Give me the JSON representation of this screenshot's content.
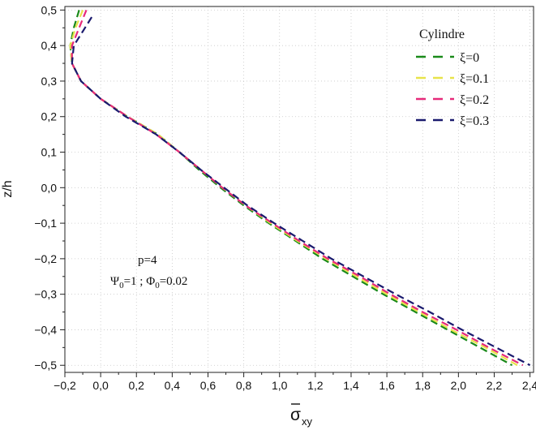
{
  "chart_data": {
    "type": "line",
    "title": "",
    "xlabel": "σxy",
    "xlabel_main": "σ",
    "xlabel_sub": "xy",
    "ylabel": "z/h",
    "xlim": [
      -0.2,
      2.42
    ],
    "ylim": [
      -0.52,
      0.51
    ],
    "x_ticks": [
      -0.2,
      0.0,
      0.2,
      0.4,
      0.6,
      0.8,
      1.0,
      1.2,
      1.4,
      1.6,
      1.8,
      2.0,
      2.2,
      2.4
    ],
    "x_tick_labels": [
      "−0,2",
      "0,0",
      "0,2",
      "0,4",
      "0,6",
      "0,8",
      "1,0",
      "1,2",
      "1,4",
      "1,6",
      "1,8",
      "2,0",
      "2,2",
      "2,4"
    ],
    "y_ticks": [
      -0.5,
      -0.4,
      -0.3,
      -0.2,
      -0.1,
      0.0,
      0.1,
      0.2,
      0.3,
      0.4,
      0.5
    ],
    "y_tick_labels": [
      "−0,5",
      "−0,4",
      "−0,3",
      "−0,2",
      "−0,1",
      "0,0",
      "0,1",
      "0,2",
      "0,3",
      "0,4",
      "0,5"
    ],
    "grid": true,
    "legend_position": "top-right",
    "legend_title": "Cylindre",
    "annotations": [
      "p=4"
    ],
    "annotation_formula": {
      "psi_symbol": "Ψ",
      "psi_sub": "0",
      "psi_value": "=1 ; ",
      "phi_symbol": "Φ",
      "phi_sub": "0",
      "phi_value": "=0.02"
    },
    "series": [
      {
        "name": "ξ=0",
        "color": "#1a8a1a",
        "points": [
          [
            -0.12,
            0.5
          ],
          [
            -0.15,
            0.45
          ],
          [
            -0.17,
            0.4
          ],
          [
            -0.16,
            0.35
          ],
          [
            -0.11,
            0.3
          ],
          [
            0.0,
            0.25
          ],
          [
            0.15,
            0.2
          ],
          [
            0.32,
            0.15
          ],
          [
            0.44,
            0.1
          ],
          [
            0.55,
            0.05
          ],
          [
            0.67,
            0.0
          ],
          [
            0.8,
            -0.05
          ],
          [
            0.94,
            -0.1
          ],
          [
            1.09,
            -0.15
          ],
          [
            1.24,
            -0.2
          ],
          [
            1.41,
            -0.25
          ],
          [
            1.58,
            -0.3
          ],
          [
            1.76,
            -0.35
          ],
          [
            1.94,
            -0.4
          ],
          [
            2.12,
            -0.45
          ],
          [
            2.3,
            -0.5
          ]
        ]
      },
      {
        "name": "ξ=0.1",
        "color": "#e8e34a",
        "points": [
          [
            -0.1,
            0.5
          ],
          [
            -0.14,
            0.45
          ],
          [
            -0.17,
            0.4
          ],
          [
            -0.16,
            0.35
          ],
          [
            -0.11,
            0.3
          ],
          [
            0.0,
            0.25
          ],
          [
            0.15,
            0.2
          ],
          [
            0.32,
            0.15
          ],
          [
            0.44,
            0.1
          ],
          [
            0.56,
            0.05
          ],
          [
            0.68,
            0.0
          ],
          [
            0.81,
            -0.05
          ],
          [
            0.95,
            -0.1
          ],
          [
            1.1,
            -0.15
          ],
          [
            1.26,
            -0.2
          ],
          [
            1.43,
            -0.25
          ],
          [
            1.6,
            -0.3
          ],
          [
            1.78,
            -0.35
          ],
          [
            1.96,
            -0.4
          ],
          [
            2.15,
            -0.45
          ],
          [
            2.33,
            -0.5
          ]
        ]
      },
      {
        "name": "ξ=0.2",
        "color": "#e62a7a",
        "points": [
          [
            -0.08,
            0.5
          ],
          [
            -0.12,
            0.45
          ],
          [
            -0.16,
            0.4
          ],
          [
            -0.16,
            0.35
          ],
          [
            -0.11,
            0.3
          ],
          [
            0.0,
            0.25
          ],
          [
            0.15,
            0.2
          ],
          [
            0.31,
            0.15
          ],
          [
            0.44,
            0.1
          ],
          [
            0.56,
            0.05
          ],
          [
            0.68,
            0.0
          ],
          [
            0.81,
            -0.05
          ],
          [
            0.96,
            -0.1
          ],
          [
            1.11,
            -0.15
          ],
          [
            1.27,
            -0.2
          ],
          [
            1.45,
            -0.25
          ],
          [
            1.62,
            -0.3
          ],
          [
            1.8,
            -0.35
          ],
          [
            1.99,
            -0.4
          ],
          [
            2.17,
            -0.45
          ],
          [
            2.36,
            -0.5
          ]
        ]
      },
      {
        "name": "ξ=0.3",
        "color": "#1a1a6e",
        "points": [
          [
            -0.05,
            0.48
          ],
          [
            -0.1,
            0.44
          ],
          [
            -0.15,
            0.4
          ],
          [
            -0.16,
            0.35
          ],
          [
            -0.11,
            0.3
          ],
          [
            0.0,
            0.25
          ],
          [
            0.14,
            0.2
          ],
          [
            0.31,
            0.15
          ],
          [
            0.44,
            0.1
          ],
          [
            0.56,
            0.05
          ],
          [
            0.69,
            0.0
          ],
          [
            0.82,
            -0.05
          ],
          [
            0.97,
            -0.1
          ],
          [
            1.13,
            -0.15
          ],
          [
            1.29,
            -0.2
          ],
          [
            1.47,
            -0.25
          ],
          [
            1.65,
            -0.3
          ],
          [
            1.84,
            -0.35
          ],
          [
            2.02,
            -0.4
          ],
          [
            2.21,
            -0.45
          ],
          [
            2.4,
            -0.5
          ]
        ]
      }
    ]
  }
}
